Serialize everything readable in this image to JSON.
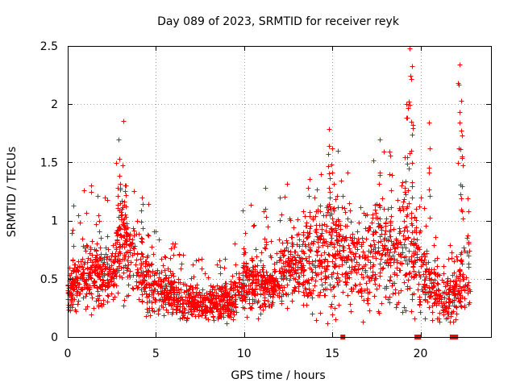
{
  "chart_data": {
    "type": "scatter",
    "title": "Day 089 of 2023, SRMTID for receiver reyk",
    "xlabel": "GPS time / hours",
    "ylabel": "SRMTID / TECUs",
    "xlim": [
      0,
      24
    ],
    "ylim": [
      0,
      2.5
    ],
    "x_ticks": [
      0,
      5,
      10,
      15,
      20
    ],
    "x_tick_labels": [
      "0",
      "5",
      "10",
      "15",
      "20"
    ],
    "y_ticks": [
      0,
      0.5,
      1,
      1.5,
      2,
      2.5
    ],
    "y_tick_labels": [
      "0",
      "0.5",
      "1",
      "1.5",
      "2",
      "2.5"
    ],
    "grid": true,
    "marker": "+",
    "color": "#ff0000",
    "series": [
      {
        "name": "SRMTID",
        "envelope_x": [
          0,
          0.5,
          1,
          1.5,
          2,
          2.5,
          3,
          3.5,
          4,
          4.5,
          5,
          5.5,
          6,
          6.5,
          7,
          7.5,
          8,
          8.5,
          9,
          9.5,
          10,
          10.5,
          11,
          11.5,
          12,
          12.5,
          13,
          13.5,
          14,
          14.5,
          15,
          15.5,
          16,
          16.5,
          17,
          17.5,
          18,
          18.5,
          19,
          19.5,
          20,
          20.5,
          21,
          21.5,
          22,
          22.5,
          22.8
        ],
        "envelope_y": [
          0.35,
          0.45,
          0.55,
          0.55,
          0.5,
          0.5,
          0.85,
          0.75,
          0.55,
          0.5,
          0.45,
          0.4,
          0.35,
          0.3,
          0.32,
          0.28,
          0.3,
          0.28,
          0.3,
          0.35,
          0.5,
          0.5,
          0.45,
          0.45,
          0.5,
          0.6,
          0.6,
          0.65,
          0.7,
          0.75,
          0.8,
          0.65,
          0.65,
          0.6,
          0.65,
          0.7,
          0.75,
          0.65,
          0.85,
          0.8,
          0.6,
          0.45,
          0.35,
          0.3,
          0.4,
          0.55,
          0.55
        ],
        "peaks": [
          {
            "x": 0.3,
            "y": 1.13
          },
          {
            "x": 1.8,
            "y": 1.0
          },
          {
            "x": 2.9,
            "y": 1.7
          },
          {
            "x": 3.3,
            "y": 1.3
          },
          {
            "x": 4.2,
            "y": 1.2
          },
          {
            "x": 11.2,
            "y": 1.28
          },
          {
            "x": 14.8,
            "y": 1.79
          },
          {
            "x": 15.0,
            "y": 1.62
          },
          {
            "x": 17.7,
            "y": 1.7
          },
          {
            "x": 18.3,
            "y": 1.56
          },
          {
            "x": 19.2,
            "y": 2.0
          },
          {
            "x": 19.4,
            "y": 2.48
          },
          {
            "x": 19.5,
            "y": 2.33
          },
          {
            "x": 20.5,
            "y": 1.84
          },
          {
            "x": 22.2,
            "y": 2.34
          },
          {
            "x": 22.3,
            "y": 2.03
          },
          {
            "x": 22.35,
            "y": 1.73
          }
        ],
        "zero_points": [
          15.6,
          19.8,
          19.9,
          21.8,
          22.0
        ]
      }
    ]
  }
}
